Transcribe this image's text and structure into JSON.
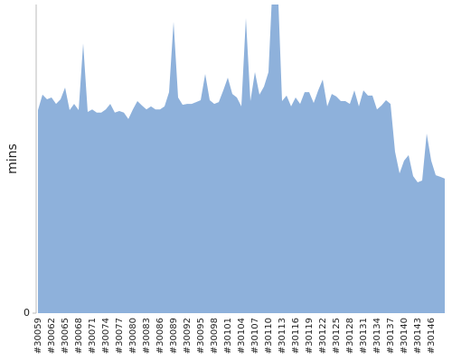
{
  "chart_data": {
    "type": "area",
    "y_label": "mins",
    "color": "#8eb1db",
    "categories": [
      "#30059",
      null,
      null,
      "#30062",
      null,
      null,
      "#30065",
      null,
      null,
      "#30068",
      null,
      null,
      "#30071",
      null,
      null,
      "#30074",
      null,
      null,
      "#30077",
      null,
      null,
      "#30080",
      null,
      null,
      "#30083",
      null,
      null,
      "#30086",
      null,
      null,
      "#30089",
      null,
      null,
      "#30092",
      null,
      null,
      "#30095",
      null,
      null,
      "#30098",
      null,
      null,
      "#30101",
      null,
      null,
      "#30104",
      null,
      null,
      "#30107",
      null,
      null,
      "#30110",
      null,
      null,
      "#30113",
      null,
      null,
      "#30116",
      null,
      null,
      "#30119",
      null,
      null,
      "#30122",
      null,
      null,
      "#30125",
      null,
      null,
      "#30128",
      null,
      null,
      "#30131",
      null,
      null,
      "#30134",
      null,
      null,
      "#30137",
      null,
      null,
      "#30140",
      null,
      null,
      "#30143",
      null,
      null,
      "#30146",
      null,
      null,
      null
    ],
    "values": [
      65.8,
      70.8,
      69.3,
      69.9,
      67.8,
      69.3,
      73.1,
      65.8,
      67.8,
      65.8,
      87.4,
      65.2,
      66,
      65,
      65,
      66,
      67.8,
      65,
      65.5,
      65,
      62.9,
      66,
      68.7,
      67.3,
      66,
      67,
      66,
      66,
      67,
      71.6,
      94.4,
      69.9,
      67.5,
      67.8,
      67.8,
      68.4,
      69,
      77.5,
      69,
      67.8,
      68.4,
      72.2,
      76.3,
      71,
      69.9,
      67,
      95.6,
      68.7,
      78.1,
      70.8,
      73.4,
      78.1,
      110,
      108,
      68.7,
      70.5,
      67,
      69.9,
      67.8,
      71.6,
      71.6,
      68.1,
      72.2,
      75.7,
      67,
      71,
      70.2,
      68.7,
      68.7,
      67.8,
      72.2,
      67,
      72.2,
      70.5,
      70.5,
      66,
      67.3,
      69,
      67.8,
      52.3,
      45.3,
      49.4,
      51.2,
      44.4,
      42.4,
      43,
      58.2,
      49.4,
      44.7,
      44.2,
      43.6
    ],
    "ylim": [
      0,
      100
    ],
    "yticks": [
      0
    ]
  }
}
